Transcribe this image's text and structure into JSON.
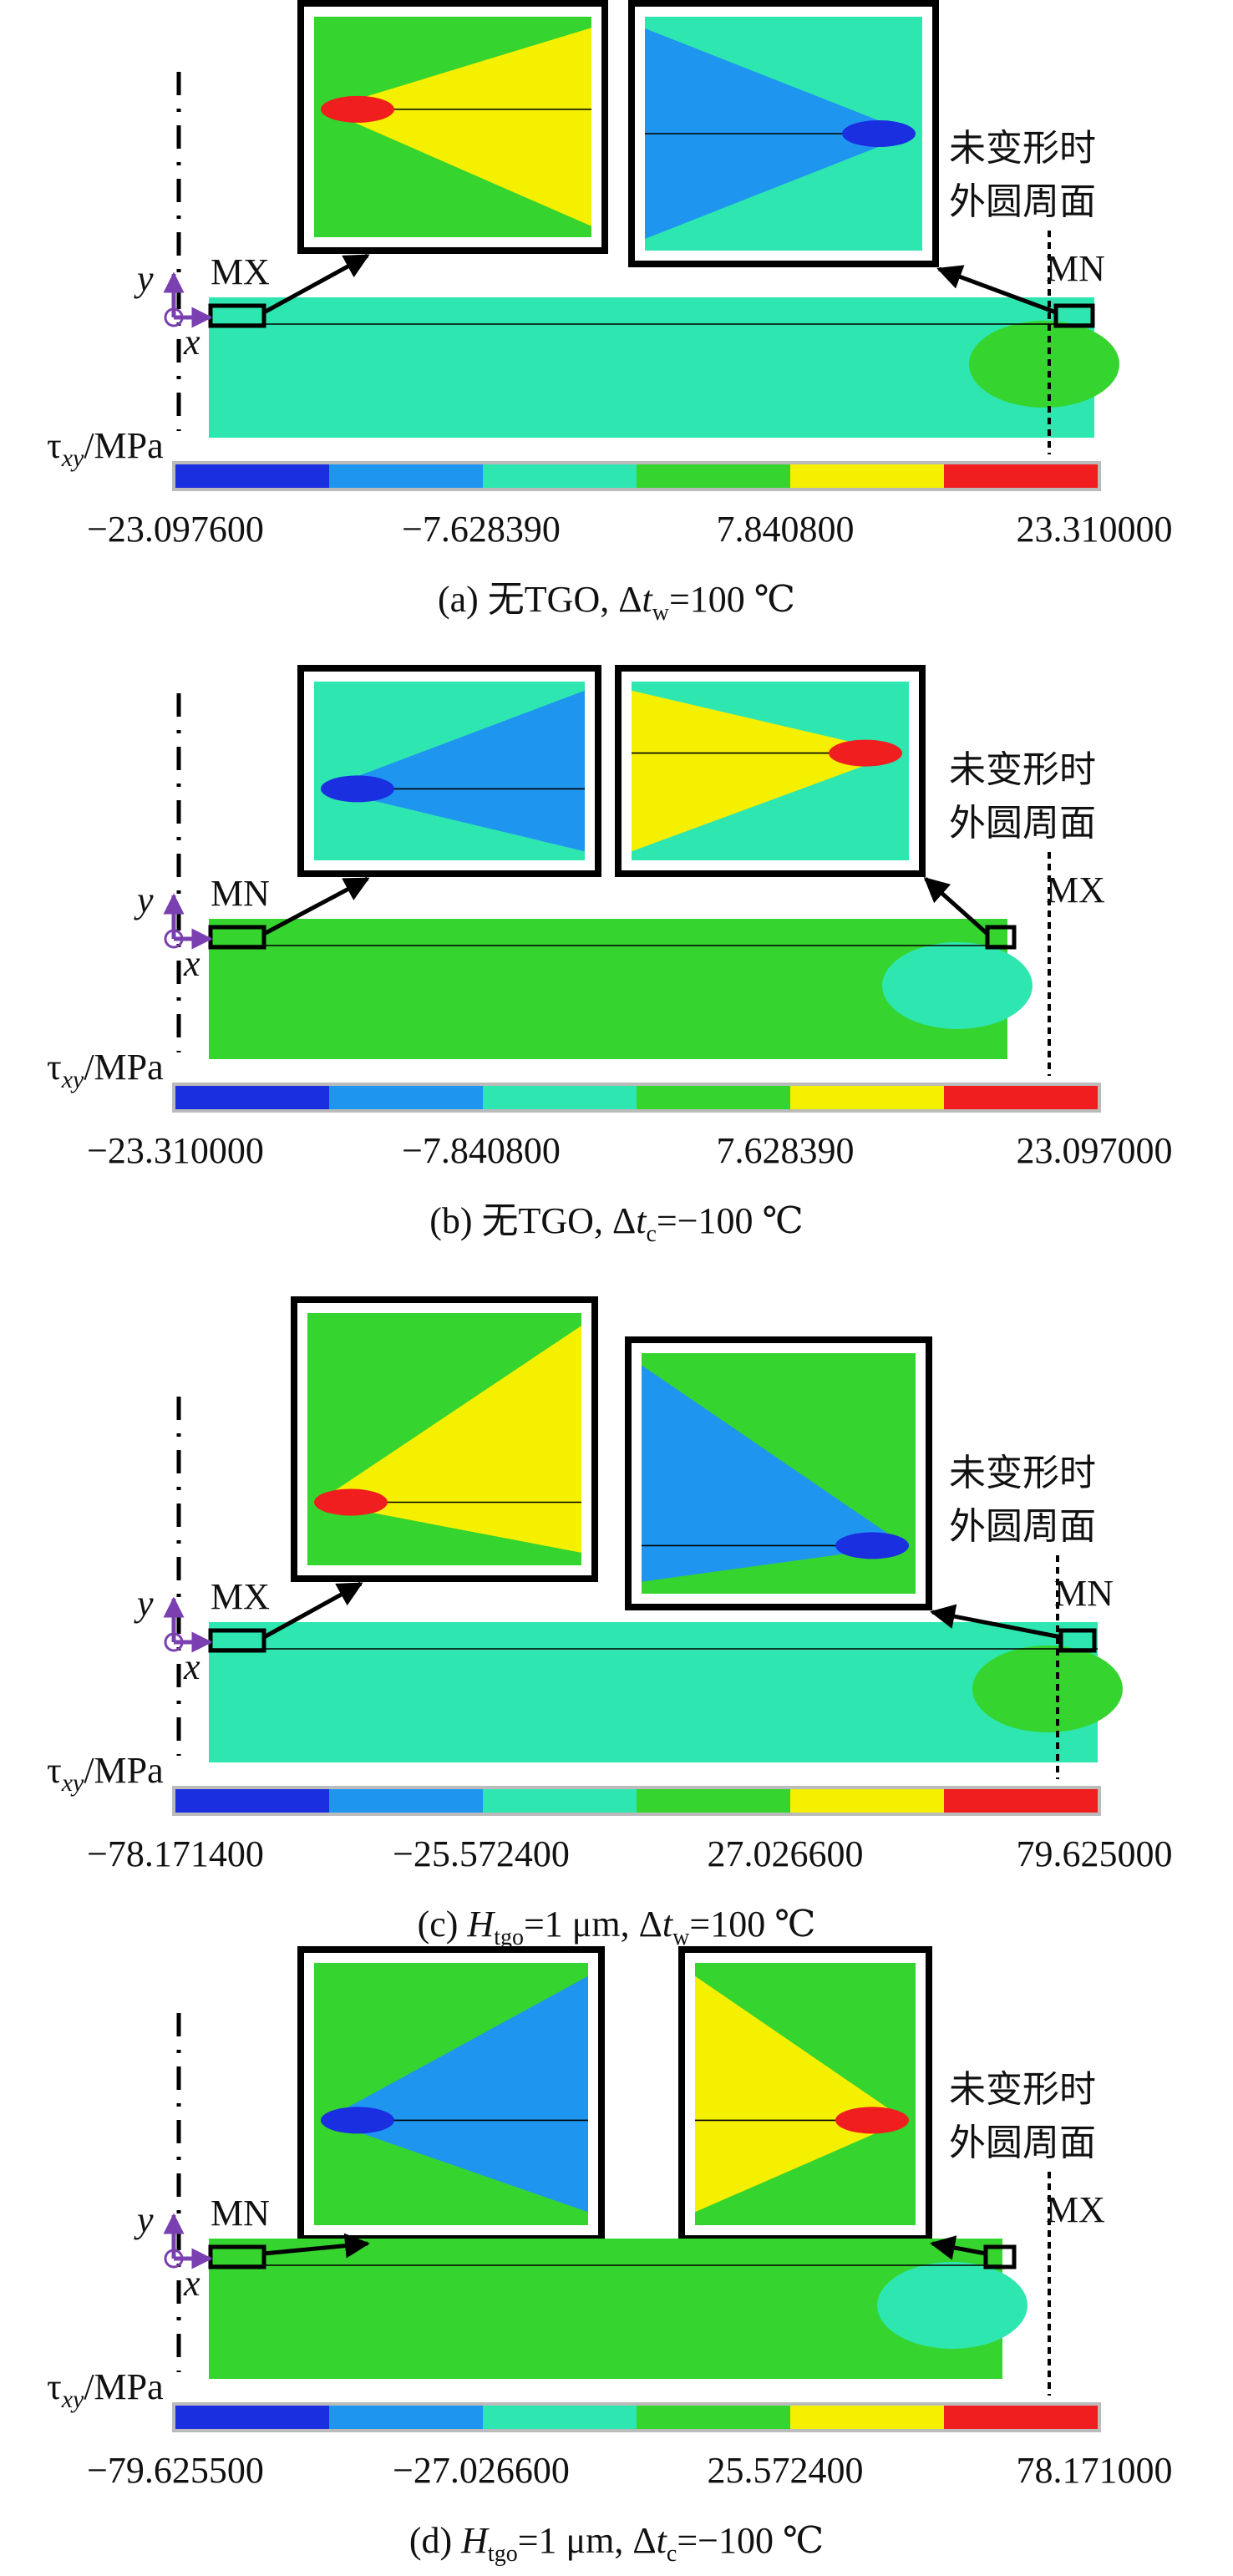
{
  "colorbar_colors": [
    "#1a2fe0",
    "#1e96f0",
    "#2ee6b0",
    "#35d42e",
    "#f5f000",
    "#f01e1e"
  ],
  "panels": [
    {
      "left_label": "MX",
      "right_label": "MN",
      "note": [
        "未变形时",
        "外圆周面"
      ],
      "axis_y": "y",
      "axis_x": "x",
      "tau": [
        "τ",
        "xy",
        "/MPa"
      ],
      "colorbar_ticks": [
        "−23.097600",
        "−7.628390",
        "7.840800",
        "23.310000"
      ],
      "caption": [
        {
          "text": "(a) 无TGO, Δ"
        },
        {
          "text": "t",
          "italic": true
        },
        {
          "text": "w",
          "sub": true
        },
        {
          "text": "=100 ℃"
        }
      ]
    },
    {
      "left_label": "MN",
      "right_label": "MX",
      "note": [
        "未变形时",
        "外圆周面"
      ],
      "axis_y": "y",
      "axis_x": "x",
      "tau": [
        "τ",
        "xy",
        "/MPa"
      ],
      "colorbar_ticks": [
        "−23.310000",
        "−7.840800",
        "7.628390",
        "23.097000"
      ],
      "caption": [
        {
          "text": "(b) 无TGO, Δ"
        },
        {
          "text": "t",
          "italic": true
        },
        {
          "text": "c",
          "sub": true
        },
        {
          "text": "=−100 ℃"
        }
      ]
    },
    {
      "left_label": "MX",
      "right_label": "MN",
      "note": [
        "未变形时",
        "外圆周面"
      ],
      "axis_y": "y",
      "axis_x": "x",
      "tau": [
        "τ",
        "xy",
        "/MPa"
      ],
      "colorbar_ticks": [
        "−78.171400",
        "−25.572400",
        "27.026600",
        "79.625000"
      ],
      "caption": [
        {
          "text": "(c) "
        },
        {
          "text": "H",
          "italic": true
        },
        {
          "text": "tgo",
          "sub": true
        },
        {
          "text": "=1 μm, Δ"
        },
        {
          "text": "t",
          "italic": true
        },
        {
          "text": "w",
          "sub": true
        },
        {
          "text": "=100 ℃"
        }
      ]
    },
    {
      "left_label": "MN",
      "right_label": "MX",
      "note": [
        "未变形时",
        "外圆周面"
      ],
      "axis_y": "y",
      "axis_x": "x",
      "tau": [
        "τ",
        "xy",
        "/MPa"
      ],
      "colorbar_ticks": [
        "−79.625500",
        "−27.026600",
        "25.572400",
        "78.171000"
      ],
      "caption": [
        {
          "text": "(d) "
        },
        {
          "text": "H",
          "italic": true
        },
        {
          "text": "tgo",
          "sub": true
        },
        {
          "text": "=1 μm, Δ"
        },
        {
          "text": "t",
          "italic": true
        },
        {
          "text": "c",
          "sub": true
        },
        {
          "text": "=−100 ℃"
        }
      ]
    }
  ]
}
